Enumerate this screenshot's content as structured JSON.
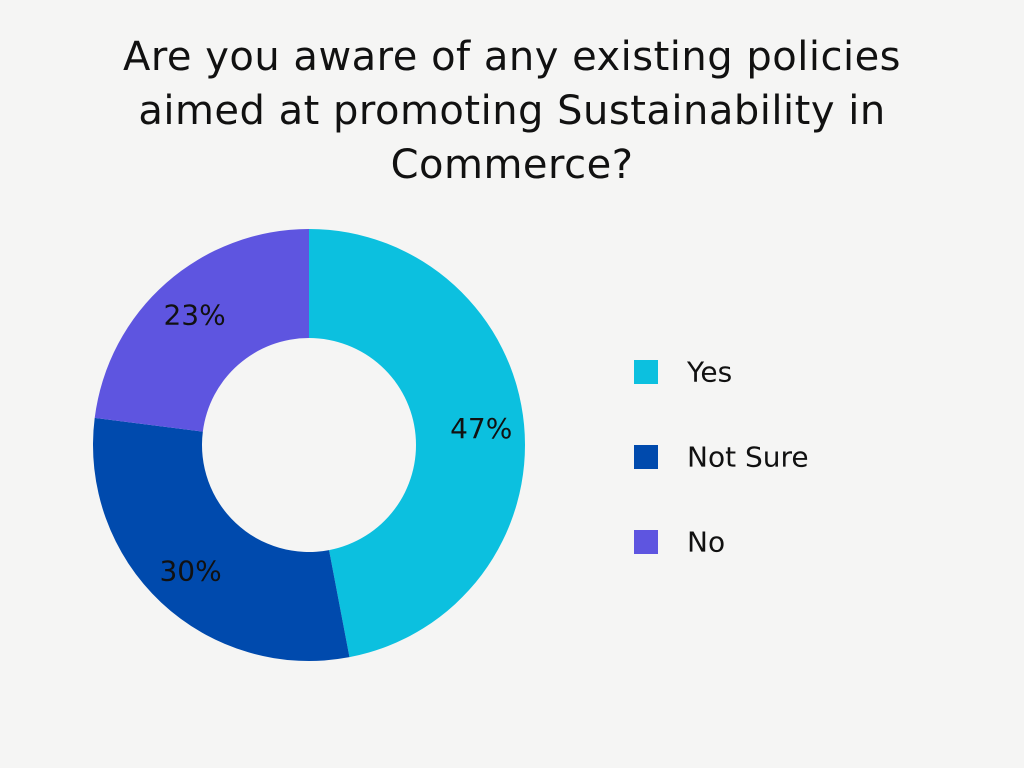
{
  "chart_data": {
    "type": "pie",
    "variant": "donut",
    "title_lines": [
      "Are you aware of any existing policies",
      "aimed at promoting Sustainability in",
      "Commerce?"
    ],
    "categories": [
      "Yes",
      "Not Sure",
      "No"
    ],
    "values": [
      47,
      30,
      23
    ],
    "value_labels": [
      "47%",
      "30%",
      "23%"
    ],
    "colors": [
      "#0cc0df",
      "#004aad",
      "#5e55e0"
    ],
    "legend": {
      "position": "right",
      "entries": [
        "Yes",
        "Not Sure",
        "No"
      ]
    }
  }
}
